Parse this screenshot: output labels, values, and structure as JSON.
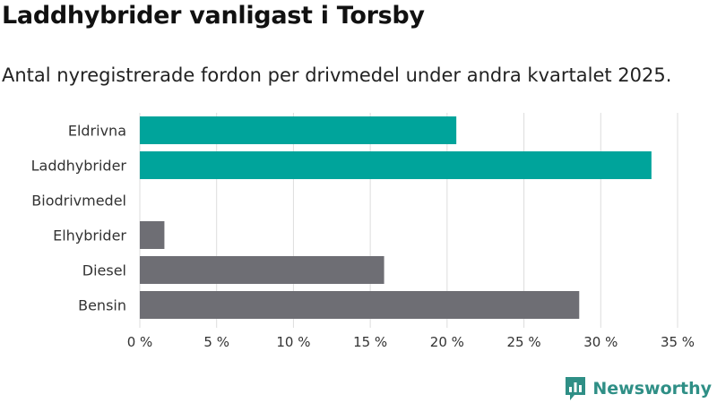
{
  "title": "Laddhybrider vanligast i Torsby",
  "subtitle": "Antal nyregistrerade fordon per drivmedel under andra kvartalet 2025.",
  "brand": "Newsworthy",
  "colors": {
    "highlight": "#00a49b",
    "default": "#6e6e74",
    "grid": "#dddddd",
    "brand": "#2f8f86"
  },
  "chart_data": {
    "type": "bar",
    "orientation": "horizontal",
    "categories": [
      "Eldrivna",
      "Laddhybrider",
      "Biodrivmedel",
      "Elhybrider",
      "Diesel",
      "Bensin"
    ],
    "values": [
      20.6,
      33.3,
      0,
      1.6,
      15.9,
      28.6
    ],
    "highlight": [
      true,
      true,
      false,
      false,
      false,
      false
    ],
    "xlim": [
      0,
      35
    ],
    "xticks": [
      0,
      5,
      10,
      15,
      20,
      25,
      30,
      35
    ],
    "xtick_labels": [
      "0 %",
      "5 %",
      "10 %",
      "15 %",
      "20 %",
      "25 %",
      "30 %",
      "35 %"
    ],
    "grid": true
  }
}
